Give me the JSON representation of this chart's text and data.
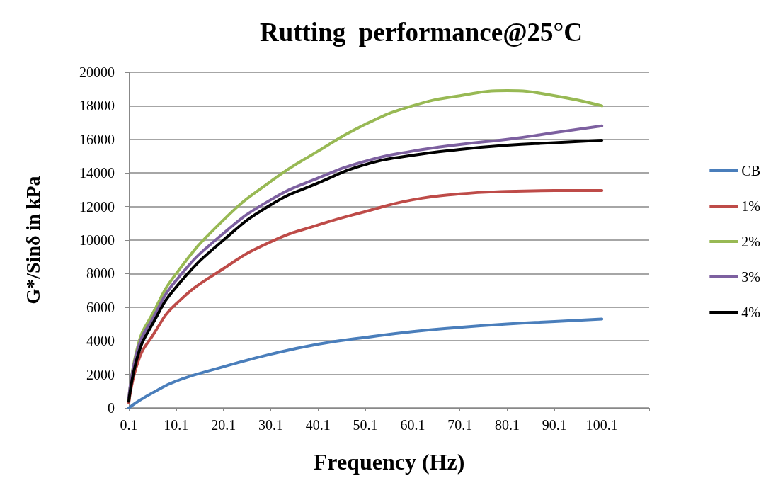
{
  "chart_data": {
    "type": "line",
    "title": "Rutting  performance@25°C",
    "xlabel": "Frequency (Hz)",
    "ylabel": "G*/Sinδ in kPa",
    "x": [
      0.1,
      2.1,
      5.1,
      10.1,
      20.1,
      30.1,
      40.1,
      50.1,
      60.1,
      70.1,
      80.1,
      90.1,
      100.1
    ],
    "xlim": [
      0.1,
      110.1
    ],
    "xticks": [
      0.1,
      10.1,
      20.1,
      30.1,
      40.1,
      50.1,
      60.1,
      70.1,
      80.1,
      90.1,
      100.1,
      {
        "value": 110.1,
        "label": null
      }
    ],
    "ylim": [
      0,
      20000
    ],
    "yticks": [
      0,
      2000,
      4000,
      6000,
      8000,
      10000,
      12000,
      14000,
      16000,
      18000,
      20000
    ],
    "grid": "y",
    "legend": "right",
    "marker": "none",
    "line_style": "solid",
    "series": [
      {
        "name": "CB",
        "color": "#4a7ebb",
        "values": [
          0,
          400,
          900,
          1600,
          2450,
          3200,
          3800,
          4200,
          4550,
          4800,
          5000,
          5150,
          5300
        ]
      },
      {
        "name": "1%",
        "color": "#be4b48",
        "values": [
          300,
          2800,
          4300,
          6200,
          8300,
          9900,
          10900,
          11700,
          12400,
          12750,
          12900,
          12950,
          12950
        ]
      },
      {
        "name": "2%",
        "color": "#98b954",
        "values": [
          500,
          3800,
          5600,
          8000,
          11200,
          13500,
          15300,
          16900,
          18000,
          18600,
          18900,
          18600,
          18000
        ]
      },
      {
        "name": "3%",
        "color": "#7d60a0",
        "values": [
          600,
          3600,
          5300,
          7600,
          10400,
          12400,
          13700,
          14700,
          15300,
          15700,
          16000,
          16400,
          16800
        ]
      },
      {
        "name": "4%",
        "color": "#000000",
        "values": [
          400,
          3200,
          5000,
          7200,
          10000,
          12100,
          13400,
          14500,
          15050,
          15400,
          15650,
          15800,
          15950
        ]
      }
    ]
  }
}
